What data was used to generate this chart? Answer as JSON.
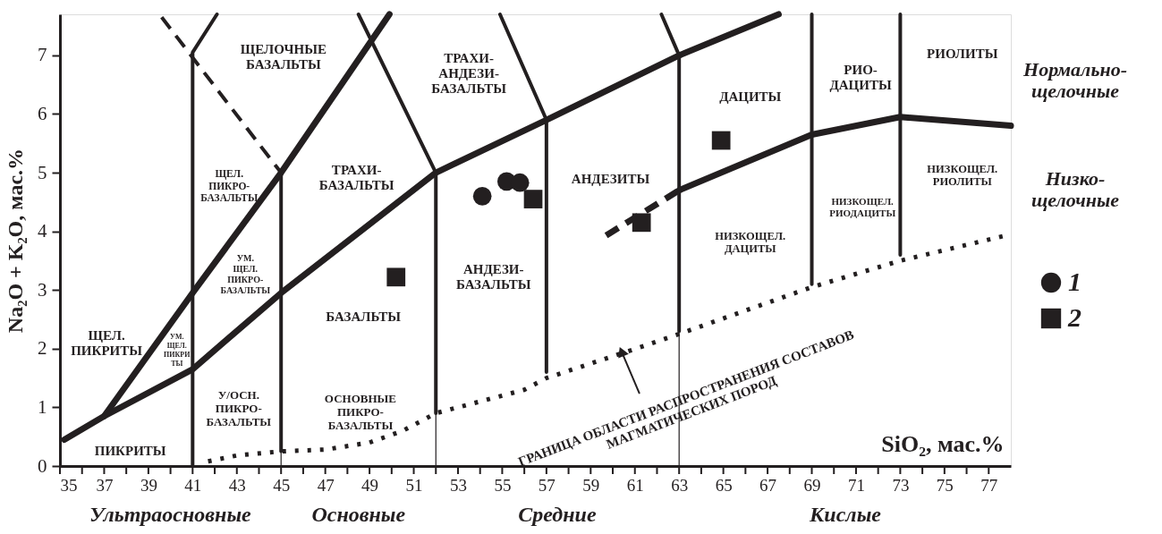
{
  "chart_data": {
    "type": "scatter",
    "xlabel": "SiO₂, мас.%",
    "ylabel": "Na₂O + K₂O, мас.%",
    "xlim": [
      35,
      78
    ],
    "ylim": [
      0,
      7.7
    ],
    "xticks": [
      35,
      {
        "value": 36,
        "label": null
      },
      37,
      {
        "value": 38,
        "label": null
      },
      39,
      {
        "value": 40,
        "label": null
      },
      41,
      {
        "value": 42,
        "label": null
      },
      43,
      {
        "value": 44,
        "label": null
      },
      45,
      {
        "value": 46,
        "label": null
      },
      47,
      {
        "value": 48,
        "label": null
      },
      49,
      {
        "value": 50,
        "label": null
      },
      51,
      {
        "value": 52,
        "label": null
      },
      53,
      {
        "value": 54,
        "label": null
      },
      55,
      {
        "value": 56,
        "label": null
      },
      57,
      {
        "value": 58,
        "label": null
      },
      59,
      {
        "value": 60,
        "label": null
      },
      61,
      {
        "value": 62,
        "label": null
      },
      63,
      {
        "value": 64,
        "label": null
      },
      65,
      {
        "value": 66,
        "label": null
      },
      67,
      {
        "value": 68,
        "label": null
      },
      69,
      {
        "value": 70,
        "label": null
      },
      71,
      {
        "value": 72,
        "label": null
      },
      73,
      {
        "value": 74,
        "label": null
      },
      75,
      {
        "value": 76,
        "label": null
      },
      77
    ],
    "yticks": [
      0,
      1,
      2,
      3,
      4,
      5,
      6,
      7
    ],
    "grid": false,
    "legend": "right",
    "series": [
      {
        "name": "1",
        "marker": "circle",
        "color": "#231f20",
        "x": [
          54.1,
          55.2,
          55.8
        ],
        "values": [
          4.6,
          4.85,
          4.83
        ]
      },
      {
        "name": "2",
        "marker": "square",
        "color": "#231f20",
        "x": [
          50.2,
          56.4,
          61.3,
          64.9
        ],
        "values": [
          3.22,
          4.55,
          4.15,
          5.55
        ]
      },
      {
        "type": "line",
        "color": "#231f20",
        "line_style": "solid",
        "x": [
          37,
          41,
          45,
          49.9
        ],
        "values": [
          0.85,
          2.95,
          5.0,
          7.7
        ]
      },
      {
        "type": "line",
        "color": "#231f20",
        "line_style": "solid",
        "x": [
          35.2,
          37,
          41,
          45,
          52,
          57,
          63,
          67.5
        ],
        "values": [
          0.45,
          0.85,
          1.65,
          2.95,
          5.0,
          5.9,
          7.0,
          7.7
        ]
      },
      {
        "type": "line",
        "color": "#231f20",
        "line_style": "solid",
        "x": [
          63,
          69,
          73,
          78
        ],
        "values": [
          4.7,
          5.65,
          5.95,
          5.8
        ]
      },
      {
        "type": "line",
        "color": "#231f20",
        "line_style": "dashed",
        "x": [
          59.7,
          63
        ],
        "values": [
          3.93,
          4.7
        ]
      },
      {
        "type": "line",
        "color": "#231f20",
        "line_style": "dashed",
        "x": [
          39.6,
          45
        ],
        "values": [
          7.65,
          5.0
        ]
      },
      {
        "type": "line",
        "color": "#231f20",
        "line_style": "solid",
        "x": [
          41,
          41,
          42.1
        ],
        "values": [
          0,
          7.05,
          7.7
        ]
      },
      {
        "type": "line",
        "color": "#231f20",
        "line_style": "solid",
        "x": [
          45,
          45
        ],
        "values": [
          0.25,
          5.0
        ]
      },
      {
        "type": "line",
        "color": "#231f20",
        "line_style": "solid",
        "x": [
          52,
          52,
          48.5
        ],
        "values": [
          0.9,
          5.0,
          7.7
        ]
      },
      {
        "type": "line",
        "color": "#231f20",
        "line_style": "solid",
        "x": [
          57,
          57,
          54.9
        ],
        "values": [
          1.6,
          5.9,
          7.7
        ]
      },
      {
        "type": "line",
        "color": "#231f20",
        "line_style": "solid",
        "x": [
          63,
          63,
          62.2
        ],
        "values": [
          2.3,
          7.0,
          7.7
        ]
      },
      {
        "type": "line",
        "color": "#231f20",
        "line_style": "solid",
        "x": [
          69,
          69
        ],
        "values": [
          3.1,
          7.7
        ]
      },
      {
        "type": "line",
        "color": "#231f20",
        "line_style": "solid",
        "x": [
          73,
          73
        ],
        "values": [
          3.6,
          7.7
        ]
      },
      {
        "type": "line",
        "color": "#231f20",
        "line_style": "solid",
        "x": [
          45,
          45
        ],
        "values": [
          0,
          0.25
        ]
      },
      {
        "type": "line",
        "color": "#231f20",
        "line_style": "solid",
        "x": [
          52,
          52
        ],
        "values": [
          0,
          0.9
        ]
      },
      {
        "type": "line",
        "color": "#231f20",
        "line_style": "solid",
        "x": [
          63,
          63
        ],
        "values": [
          0,
          2.3
        ]
      },
      {
        "type": "line",
        "color": "#231f20",
        "line_style": "dotted",
        "x": [
          41.7,
          43,
          45,
          47,
          49,
          50.5,
          52,
          54,
          56,
          57,
          60.4,
          63,
          66,
          69,
          73,
          78
        ],
        "values": [
          0.08,
          0.18,
          0.25,
          0.28,
          0.4,
          0.6,
          0.9,
          1.1,
          1.3,
          1.5,
          1.92,
          2.25,
          2.65,
          3.05,
          3.5,
          3.95
        ]
      }
    ],
    "annotations": [
      "ЩЕЛОЧНЫЕ\nБАЗАЛЬТЫ",
      "ТРАХИ-\nАНДЕЗИ-\nБАЗАЛЬТЫ",
      "ЩЕЛ.\nПИКРО-\nБАЗАЛЬТЫ",
      "ТРАХИ-\nБАЗАЛЬТЫ",
      "АНДЕЗИТЫ",
      "ДАЦИТЫ",
      "РИО-\nДАЦИТЫ",
      "РИОЛИТЫ",
      "НИЗКОЩЕЛ.\nРИОЛИТЫ",
      "НИЗКОЩЕЛ.\nРИОДАЦИТЫ",
      "НИЗКОЩЕЛ.\nДАЦИТЫ",
      "АНДЕЗИ-\nБАЗАЛЬТЫ",
      "УМ.\nЩЕЛ.\nПИКРО-\nБАЗАЛЬТЫ",
      "ЩЕЛ.\nПИКРИТЫ",
      "УМ.\nЩЕЛ.\nПИКРИ\nТЫ",
      "БАЗАЛЬТЫ",
      "У/ОСН.\nПИКРО-\nБАЗАЛЬТЫ",
      "ОСНОВНЫЕ\nПИКРО-\nБАЗАЛЬТЫ",
      "ПИКРИТЫ",
      {
        "text": "ГРАНИЦА ОБЛАСТИ РАСПРОСТРАНЕНИЯ СОСТАВОВ\nМАГМАТИЧЕСКИХ ПОРОД",
        "x": 60.4,
        "y": 1.95
      },
      "Ультраосновные",
      "Основные",
      "Средние",
      "Кислые",
      "Нормально-\nщелочные",
      "Низко-\nщелочные"
    ]
  }
}
